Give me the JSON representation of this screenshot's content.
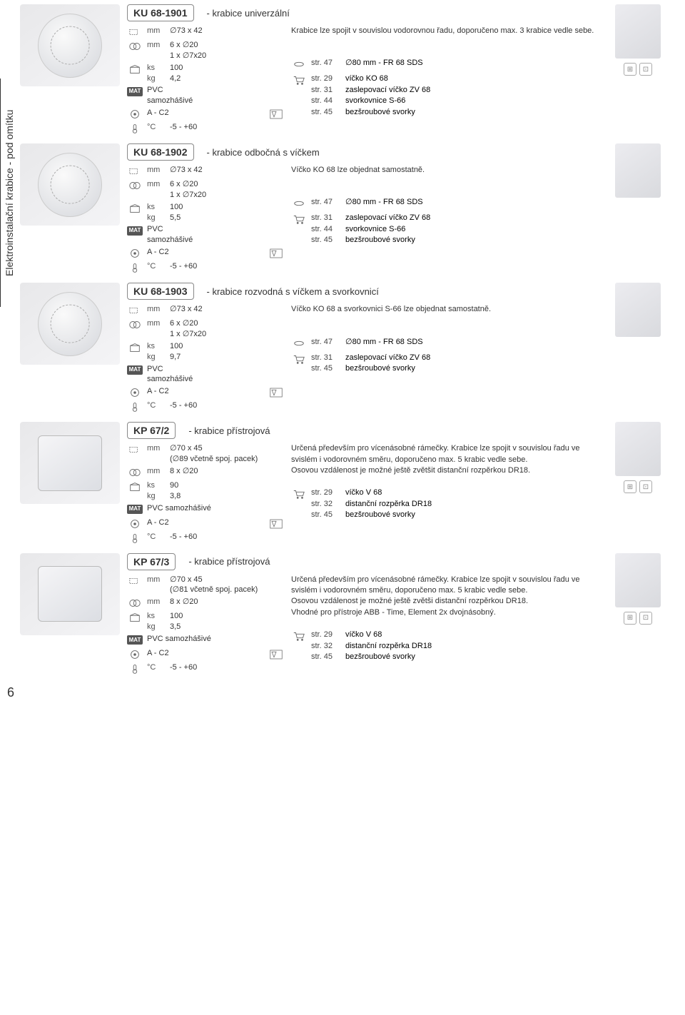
{
  "sidebar_label": "Elektroinstalační krabice - pod omítku",
  "page_number": "6",
  "products": [
    {
      "code": "KU 68-1901",
      "title": "- krabice univerzální",
      "description": "Krabice lze spojit v souvislou vodorovnou řadu, doporučeno max. 3 krabice vedle sebe.",
      "dims": "∅73 x 42",
      "holes": "6 x ∅20\n1 x ∅7x20",
      "pack_ks": "100",
      "pack_kg": "4,2",
      "material": "PVC\nsamozhášivé",
      "class": "A - C2",
      "temp": "-5 - +60",
      "cover_ref": {
        "page": "str. 47",
        "text": "∅80 mm - FR 68 SDS"
      },
      "refs": [
        {
          "page": "str. 29",
          "text": "víčko KO 68"
        },
        {
          "page": "str. 31",
          "text": "zaslepovací víčko ZV 68"
        },
        {
          "page": "str. 44",
          "text": "svorkovnice S-66"
        },
        {
          "page": "str. 45",
          "text": "bezšroubové svorky"
        }
      ],
      "right_icons": true
    },
    {
      "code": "KU 68-1902",
      "title": "- krabice odbočná s víčkem",
      "description": "Víčko KO 68 lze objednat samostatně.",
      "dims": "∅73 x 42",
      "holes": "6 x ∅20\n1 x ∅7x20",
      "pack_ks": "100",
      "pack_kg": "5,5",
      "material": "PVC\nsamozhášivé",
      "class": "A - C2",
      "temp": "-5 - +60",
      "cover_ref": {
        "page": "str. 47",
        "text": "∅80 mm - FR 68 SDS"
      },
      "refs": [
        {
          "page": "str. 31",
          "text": "zaslepovací víčko ZV 68"
        },
        {
          "page": "str. 44",
          "text": "svorkovnice S-66"
        },
        {
          "page": "str. 45",
          "text": "bezšroubové svorky"
        }
      ],
      "right_icons": false
    },
    {
      "code": "KU 68-1903",
      "title": "- krabice rozvodná s víčkem a svorkovnicí",
      "description": "Víčko KO 68 a svorkovnici S-66 lze objednat samostatně.",
      "dims": "∅73 x 42",
      "holes": "6 x ∅20\n1 x ∅7x20",
      "pack_ks": "100",
      "pack_kg": "9,7",
      "material": "PVC\nsamozhášivé",
      "class": "A - C2",
      "temp": "-5 - +60",
      "cover_ref": {
        "page": "str. 47",
        "text": "∅80 mm - FR 68 SDS"
      },
      "refs": [
        {
          "page": "str. 31",
          "text": "zaslepovací víčko ZV 68"
        },
        {
          "page": "str. 45",
          "text": "bezšroubové svorky"
        }
      ],
      "right_icons": false
    },
    {
      "code": "KP 67/2",
      "title": "- krabice přístrojová",
      "description": "Určená především pro vícenásobné rámečky. Krabice lze spojit v souvislou řadu ve svislém i vodorovném směru, doporučeno max. 5 krabic vedle sebe.\nOsovou vzdálenost je možné ještě zvětšit distanční rozpěrkou DR18.",
      "dims": "∅70 x 45\n(∅89 včetně spoj. pacek)",
      "holes": "8 x ∅20",
      "pack_ks": "90",
      "pack_kg": "3,8",
      "material": "PVC samozhášivé",
      "class": "A - C2",
      "temp": "-5 - +60",
      "cover_ref": null,
      "refs": [
        {
          "page": "str. 29",
          "text": "víčko V 68"
        },
        {
          "page": "str. 32",
          "text": "distanční rozpěrka DR18"
        },
        {
          "page": "str. 45",
          "text": "bezšroubové svorky"
        }
      ],
      "right_icons": true
    },
    {
      "code": "KP 67/3",
      "title": "- krabice přístrojová",
      "description": "Určená především pro vícenásobné rámečky. Krabice lze spojit v souvislou řadu ve svislém i vodorovném směru, doporučeno max. 5 krabic vedle sebe.\nOsovou vzdálenost je možné ještě zvětši distanční rozpěrkou DR18.\nVhodné pro přístroje ABB - Time, Element 2x dvojnásobný.",
      "dims": "∅70 x 45\n(∅81 včetně spoj. pacek)",
      "holes": "8 x ∅20",
      "pack_ks": "100",
      "pack_kg": "3,5",
      "material": "PVC samozhášivé",
      "class": "A - C2",
      "temp": "-5 - +60",
      "cover_ref": null,
      "refs": [
        {
          "page": "str. 29",
          "text": "víčko V 68"
        },
        {
          "page": "str. 32",
          "text": "distanční rozpěrka DR18"
        },
        {
          "page": "str. 45",
          "text": "bezšroubové svorky"
        }
      ],
      "right_icons": true
    }
  ],
  "labels": {
    "mm": "mm",
    "ks": "ks",
    "kg": "kg",
    "degC": "°C",
    "mat": "MAT"
  }
}
